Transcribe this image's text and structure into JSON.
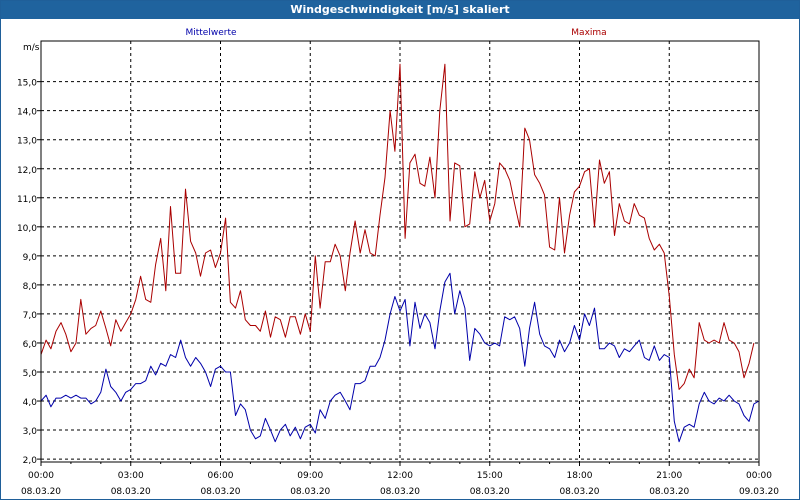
{
  "window": {
    "title": "Windgeschwindigkeit [m/s] skaliert"
  },
  "chart_data": {
    "type": "line",
    "title": "Windgeschwindigkeit [m/s] skaliert",
    "ylabel": "m/s",
    "xlabel": "",
    "ylim": [
      1.9,
      16.4
    ],
    "xlim": [
      0,
      24
    ],
    "y_ticks": [
      "2,0",
      "3,0",
      "4,0",
      "5,0",
      "6,0",
      "7,0",
      "8,0",
      "9,0",
      "10,0",
      "11,0",
      "12,0",
      "13,0",
      "14,0",
      "15,0"
    ],
    "y_tick_values": [
      2,
      3,
      4,
      5,
      6,
      7,
      8,
      9,
      10,
      11,
      12,
      13,
      14,
      15
    ],
    "x_tick_values": [
      0,
      3,
      6,
      9,
      12,
      15,
      18,
      21,
      24
    ],
    "x_ticks": [
      {
        "time": "00:00",
        "date": "08.03.20"
      },
      {
        "time": "03:00",
        "date": "08.03.20"
      },
      {
        "time": "06:00",
        "date": "08.03.20"
      },
      {
        "time": "09:00",
        "date": "08.03.20"
      },
      {
        "time": "12:00",
        "date": "08.03.20"
      },
      {
        "time": "15:00",
        "date": "08.03.20"
      },
      {
        "time": "18:00",
        "date": "08.03.20"
      },
      {
        "time": "21:00",
        "date": "08.03.20"
      },
      {
        "time": "00:00",
        "date": "09.03.20"
      }
    ],
    "grid": true,
    "series": [
      {
        "name": "Mittelwerte",
        "color": "#0000aa",
        "points": [
          [
            0,
            4.0
          ],
          [
            0.17,
            4.2
          ],
          [
            0.33,
            3.8
          ],
          [
            0.5,
            4.1
          ],
          [
            0.67,
            4.1
          ],
          [
            0.83,
            4.2
          ],
          [
            1.0,
            4.1
          ],
          [
            1.17,
            4.2
          ],
          [
            1.33,
            4.1
          ],
          [
            1.5,
            4.1
          ],
          [
            1.67,
            3.9
          ],
          [
            1.83,
            4.0
          ],
          [
            2.0,
            4.3
          ],
          [
            2.17,
            5.1
          ],
          [
            2.33,
            4.5
          ],
          [
            2.5,
            4.3
          ],
          [
            2.67,
            4.0
          ],
          [
            2.83,
            4.3
          ],
          [
            3.0,
            4.4
          ],
          [
            3.17,
            4.6
          ],
          [
            3.33,
            4.6
          ],
          [
            3.5,
            4.7
          ],
          [
            3.67,
            5.2
          ],
          [
            3.83,
            4.9
          ],
          [
            4.0,
            5.3
          ],
          [
            4.17,
            5.2
          ],
          [
            4.33,
            5.6
          ],
          [
            4.5,
            5.5
          ],
          [
            4.67,
            6.1
          ],
          [
            4.83,
            5.5
          ],
          [
            5.0,
            5.2
          ],
          [
            5.17,
            5.5
          ],
          [
            5.33,
            5.3
          ],
          [
            5.5,
            5.0
          ],
          [
            5.67,
            4.5
          ],
          [
            5.83,
            5.1
          ],
          [
            6.0,
            5.2
          ],
          [
            6.17,
            5.0
          ],
          [
            6.33,
            5.0
          ],
          [
            6.5,
            3.5
          ],
          [
            6.67,
            3.9
          ],
          [
            6.83,
            3.7
          ],
          [
            7.0,
            3.0
          ],
          [
            7.17,
            2.7
          ],
          [
            7.33,
            2.8
          ],
          [
            7.5,
            3.4
          ],
          [
            7.67,
            3.0
          ],
          [
            7.83,
            2.6
          ],
          [
            8.0,
            3.0
          ],
          [
            8.17,
            3.2
          ],
          [
            8.33,
            2.8
          ],
          [
            8.5,
            3.1
          ],
          [
            8.67,
            2.7
          ],
          [
            8.83,
            3.1
          ],
          [
            9.0,
            3.2
          ],
          [
            9.17,
            2.9
          ],
          [
            9.33,
            3.7
          ],
          [
            9.5,
            3.4
          ],
          [
            9.67,
            4.0
          ],
          [
            9.83,
            4.2
          ],
          [
            10.0,
            4.3
          ],
          [
            10.17,
            4.0
          ],
          [
            10.33,
            3.7
          ],
          [
            10.5,
            4.6
          ],
          [
            10.67,
            4.6
          ],
          [
            10.83,
            4.7
          ],
          [
            11.0,
            5.2
          ],
          [
            11.17,
            5.2
          ],
          [
            11.33,
            5.5
          ],
          [
            11.5,
            6.1
          ],
          [
            11.67,
            7.0
          ],
          [
            11.83,
            7.6
          ],
          [
            12.0,
            7.1
          ],
          [
            12.17,
            7.5
          ],
          [
            12.33,
            5.9
          ],
          [
            12.5,
            7.4
          ],
          [
            12.67,
            6.5
          ],
          [
            12.83,
            7.0
          ],
          [
            13.0,
            6.7
          ],
          [
            13.17,
            5.8
          ],
          [
            13.33,
            7.1
          ],
          [
            13.5,
            8.1
          ],
          [
            13.67,
            8.4
          ],
          [
            13.83,
            7.0
          ],
          [
            14.0,
            7.8
          ],
          [
            14.17,
            7.2
          ],
          [
            14.33,
            5.4
          ],
          [
            14.5,
            6.5
          ],
          [
            14.67,
            6.3
          ],
          [
            14.83,
            6.0
          ],
          [
            15.0,
            5.9
          ],
          [
            15.17,
            6.0
          ],
          [
            15.33,
            5.9
          ],
          [
            15.5,
            6.9
          ],
          [
            15.67,
            6.8
          ],
          [
            15.83,
            6.9
          ],
          [
            16.0,
            6.5
          ],
          [
            16.17,
            5.2
          ],
          [
            16.33,
            6.5
          ],
          [
            16.5,
            7.4
          ],
          [
            16.67,
            6.3
          ],
          [
            16.83,
            5.9
          ],
          [
            17.0,
            5.8
          ],
          [
            17.17,
            5.5
          ],
          [
            17.33,
            6.1
          ],
          [
            17.5,
            5.7
          ],
          [
            17.67,
            6.0
          ],
          [
            17.83,
            6.6
          ],
          [
            18.0,
            6.1
          ],
          [
            18.17,
            7.0
          ],
          [
            18.33,
            6.6
          ],
          [
            18.5,
            7.2
          ],
          [
            18.67,
            5.8
          ],
          [
            18.83,
            5.8
          ],
          [
            19.0,
            6.0
          ],
          [
            19.17,
            5.9
          ],
          [
            19.33,
            5.5
          ],
          [
            19.5,
            5.8
          ],
          [
            19.67,
            5.7
          ],
          [
            19.83,
            5.9
          ],
          [
            20.0,
            6.1
          ],
          [
            20.17,
            5.5
          ],
          [
            20.33,
            5.4
          ],
          [
            20.5,
            5.9
          ],
          [
            20.67,
            5.4
          ],
          [
            20.83,
            5.6
          ],
          [
            21.0,
            5.5
          ],
          [
            21.17,
            3.3
          ],
          [
            21.33,
            2.6
          ],
          [
            21.5,
            3.1
          ],
          [
            21.67,
            3.2
          ],
          [
            21.83,
            3.1
          ],
          [
            22.0,
            3.9
          ],
          [
            22.17,
            4.3
          ],
          [
            22.33,
            4.0
          ],
          [
            22.5,
            3.9
          ],
          [
            22.67,
            4.1
          ],
          [
            22.83,
            4.0
          ],
          [
            23.0,
            4.2
          ],
          [
            23.17,
            4.0
          ],
          [
            23.33,
            3.9
          ],
          [
            23.5,
            3.5
          ],
          [
            23.67,
            3.3
          ],
          [
            23.83,
            3.9
          ],
          [
            24.0,
            4.0
          ]
        ]
      },
      {
        "name": "Maxima",
        "color": "#aa0000",
        "points": [
          [
            0,
            5.6
          ],
          [
            0.17,
            6.1
          ],
          [
            0.33,
            5.8
          ],
          [
            0.5,
            6.4
          ],
          [
            0.67,
            6.7
          ],
          [
            0.83,
            6.3
          ],
          [
            1.0,
            5.7
          ],
          [
            1.17,
            6.0
          ],
          [
            1.33,
            7.5
          ],
          [
            1.5,
            6.3
          ],
          [
            1.67,
            6.5
          ],
          [
            1.83,
            6.6
          ],
          [
            2.0,
            7.1
          ],
          [
            2.17,
            6.5
          ],
          [
            2.33,
            5.9
          ],
          [
            2.5,
            6.8
          ],
          [
            2.67,
            6.4
          ],
          [
            2.83,
            6.7
          ],
          [
            3.0,
            7.0
          ],
          [
            3.17,
            7.5
          ],
          [
            3.33,
            8.3
          ],
          [
            3.5,
            7.5
          ],
          [
            3.67,
            7.4
          ],
          [
            3.83,
            8.7
          ],
          [
            4.0,
            9.6
          ],
          [
            4.17,
            7.8
          ],
          [
            4.33,
            10.7
          ],
          [
            4.5,
            8.4
          ],
          [
            4.67,
            8.4
          ],
          [
            4.83,
            11.3
          ],
          [
            5.0,
            9.5
          ],
          [
            5.17,
            9.1
          ],
          [
            5.33,
            8.3
          ],
          [
            5.5,
            9.1
          ],
          [
            5.67,
            9.2
          ],
          [
            5.83,
            8.6
          ],
          [
            6.0,
            9.1
          ],
          [
            6.17,
            10.3
          ],
          [
            6.33,
            7.4
          ],
          [
            6.5,
            7.2
          ],
          [
            6.67,
            7.8
          ],
          [
            6.83,
            6.8
          ],
          [
            7.0,
            6.6
          ],
          [
            7.17,
            6.6
          ],
          [
            7.33,
            6.4
          ],
          [
            7.5,
            7.1
          ],
          [
            7.67,
            6.2
          ],
          [
            7.83,
            6.9
          ],
          [
            8.0,
            6.8
          ],
          [
            8.17,
            6.2
          ],
          [
            8.33,
            6.9
          ],
          [
            8.5,
            6.9
          ],
          [
            8.67,
            6.3
          ],
          [
            8.83,
            7.0
          ],
          [
            9.0,
            6.4
          ],
          [
            9.17,
            9.0
          ],
          [
            9.33,
            7.2
          ],
          [
            9.5,
            8.8
          ],
          [
            9.67,
            8.8
          ],
          [
            9.83,
            9.4
          ],
          [
            10.0,
            9.0
          ],
          [
            10.17,
            7.8
          ],
          [
            10.33,
            9.1
          ],
          [
            10.5,
            10.2
          ],
          [
            10.67,
            9.1
          ],
          [
            10.83,
            9.9
          ],
          [
            11.0,
            9.1
          ],
          [
            11.17,
            9.0
          ],
          [
            11.33,
            10.4
          ],
          [
            11.5,
            11.7
          ],
          [
            11.67,
            14.0
          ],
          [
            11.83,
            12.6
          ],
          [
            12.0,
            15.6
          ],
          [
            12.17,
            9.6
          ],
          [
            12.33,
            12.2
          ],
          [
            12.5,
            12.5
          ],
          [
            12.67,
            11.5
          ],
          [
            12.83,
            11.4
          ],
          [
            13.0,
            12.4
          ],
          [
            13.17,
            11.0
          ],
          [
            13.33,
            14.0
          ],
          [
            13.5,
            15.6
          ],
          [
            13.67,
            10.2
          ],
          [
            13.83,
            12.2
          ],
          [
            14.0,
            12.1
          ],
          [
            14.17,
            10.0
          ],
          [
            14.33,
            10.1
          ],
          [
            14.5,
            11.9
          ],
          [
            14.67,
            11.0
          ],
          [
            14.83,
            11.6
          ],
          [
            15.0,
            10.2
          ],
          [
            15.17,
            10.8
          ],
          [
            15.33,
            12.2
          ],
          [
            15.5,
            12.0
          ],
          [
            15.67,
            11.6
          ],
          [
            15.83,
            10.8
          ],
          [
            16.0,
            10.0
          ],
          [
            16.17,
            13.4
          ],
          [
            16.33,
            13.0
          ],
          [
            16.5,
            11.8
          ],
          [
            16.67,
            11.5
          ],
          [
            16.83,
            11.1
          ],
          [
            17.0,
            9.3
          ],
          [
            17.17,
            9.2
          ],
          [
            17.33,
            11.0
          ],
          [
            17.5,
            9.1
          ],
          [
            17.67,
            10.4
          ],
          [
            17.83,
            11.2
          ],
          [
            18.0,
            11.4
          ],
          [
            18.17,
            11.9
          ],
          [
            18.33,
            12.0
          ],
          [
            18.5,
            10.0
          ],
          [
            18.67,
            12.3
          ],
          [
            18.83,
            11.5
          ],
          [
            19.0,
            11.9
          ],
          [
            19.17,
            9.7
          ],
          [
            19.33,
            10.8
          ],
          [
            19.5,
            10.2
          ],
          [
            19.67,
            10.1
          ],
          [
            19.83,
            10.8
          ],
          [
            20.0,
            10.4
          ],
          [
            20.17,
            10.3
          ],
          [
            20.33,
            9.6
          ],
          [
            20.5,
            9.2
          ],
          [
            20.67,
            9.4
          ],
          [
            20.83,
            9.1
          ],
          [
            21.0,
            7.6
          ],
          [
            21.17,
            5.6
          ],
          [
            21.33,
            4.4
          ],
          [
            21.5,
            4.6
          ],
          [
            21.67,
            5.1
          ],
          [
            21.83,
            4.8
          ],
          [
            22.0,
            6.7
          ],
          [
            22.17,
            6.1
          ],
          [
            22.33,
            6.0
          ],
          [
            22.5,
            6.1
          ],
          [
            22.67,
            6.0
          ],
          [
            22.83,
            6.7
          ],
          [
            23.0,
            6.1
          ],
          [
            23.17,
            6.0
          ],
          [
            23.33,
            5.7
          ],
          [
            23.5,
            4.8
          ],
          [
            23.67,
            5.3
          ],
          [
            23.83,
            6.0
          ]
        ]
      }
    ]
  }
}
